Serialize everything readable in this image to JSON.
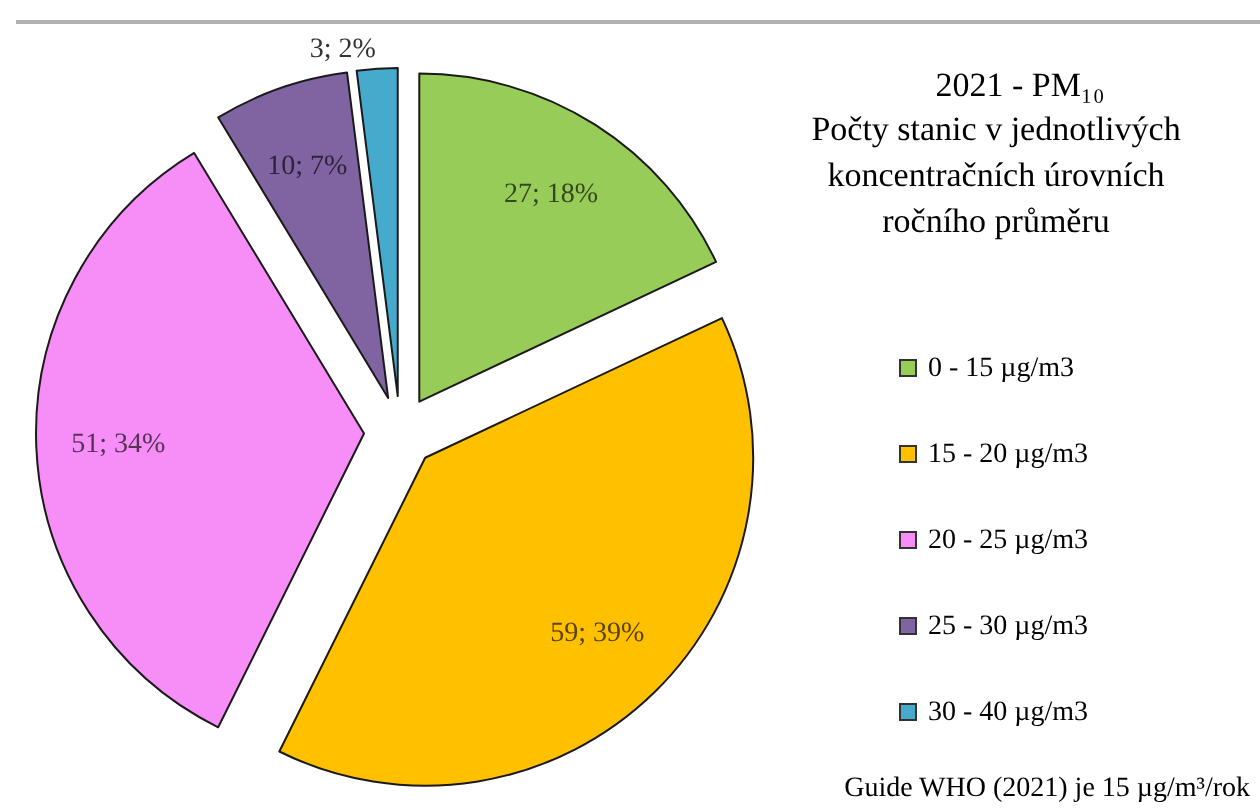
{
  "chart_data": {
    "type": "pie",
    "title": "2021 - PM₁₀",
    "subtitle": "Počty stanic v jednotlivých koncentračních úrovních ročního průměru",
    "categories": [
      "0 - 15 µg/m3",
      "15 - 20 µg/m3",
      "20 - 25 µg/m3",
      "25 - 30 µg/m3",
      "30 - 40 µg/m3"
    ],
    "values": [
      27,
      59,
      51,
      10,
      3
    ],
    "colors": [
      "#98cc58",
      "#ffc000",
      "#f78ef7",
      "#8064a2",
      "#45aacb"
    ],
    "value_labels": [
      "27; 18%",
      "59; 39%",
      "51; 34%",
      "10; 7%",
      "3; 2%"
    ],
    "legend": "right",
    "annotations": [
      "Guide WHO (2021) je 15 µg/m³/rok"
    ]
  }
}
